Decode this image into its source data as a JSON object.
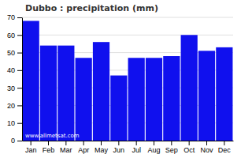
{
  "chart_data": {
    "type": "bar",
    "title": "Dubbo : precipitation (mm)",
    "categories": [
      "Jan",
      "Feb",
      "Mar",
      "Apr",
      "May",
      "Jun",
      "Jul",
      "Aug",
      "Sep",
      "Oct",
      "Nov",
      "Dec"
    ],
    "values": [
      68,
      54,
      54,
      47,
      56,
      37,
      47,
      47,
      48,
      60,
      51,
      53
    ],
    "color": "#1010EE",
    "ylim": [
      0,
      70
    ],
    "yticks": [
      0,
      10,
      20,
      30,
      40,
      50,
      60,
      70
    ],
    "grid": true,
    "annotations": [
      "www.allmetsat.com"
    ]
  }
}
